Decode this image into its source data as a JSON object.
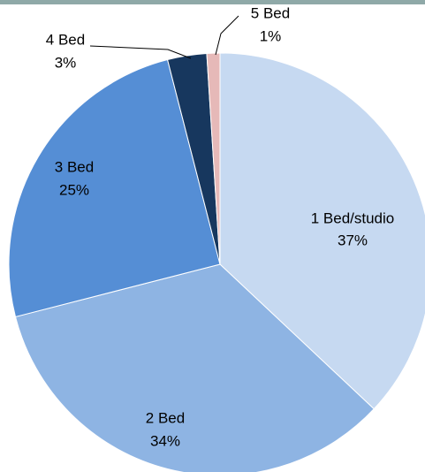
{
  "chart_data": {
    "type": "pie",
    "categories": [
      "1 Bed/studio",
      "2 Bed",
      "3 Bed",
      "4 Bed",
      "5 Bed"
    ],
    "values": [
      37,
      34,
      25,
      3,
      1
    ],
    "value_labels": [
      "37%",
      "34%",
      "25%",
      "3%",
      "1%"
    ],
    "colors": [
      "#c6d9f1",
      "#8eb4e3",
      "#558ed5",
      "#17375e",
      "#e6b9b8"
    ]
  }
}
